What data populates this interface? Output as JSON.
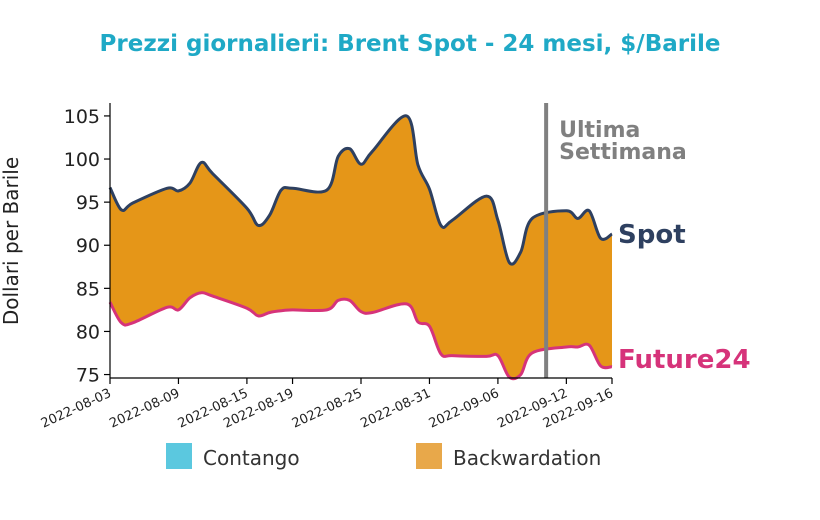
{
  "chart_data": {
    "type": "area",
    "title": "Prezzi giornalieri: Brent Spot - 24 mesi, $/Barile",
    "xlabel": "",
    "ylabel": "Dollari per Barile",
    "ylim": [
      74.6,
      106.5
    ],
    "yticks": [
      75,
      80,
      85,
      90,
      95,
      100,
      105
    ],
    "x": [
      "2022-08-03",
      "2022-08-04",
      "2022-08-05",
      "2022-08-08",
      "2022-08-09",
      "2022-08-10",
      "2022-08-11",
      "2022-08-12",
      "2022-08-15",
      "2022-08-16",
      "2022-08-17",
      "2022-08-18",
      "2022-08-19",
      "2022-08-22",
      "2022-08-23",
      "2022-08-24",
      "2022-08-25",
      "2022-08-26",
      "2022-08-29",
      "2022-08-30",
      "2022-08-31",
      "2022-09-01",
      "2022-09-02",
      "2022-09-05",
      "2022-09-06",
      "2022-09-07",
      "2022-09-08",
      "2022-09-09",
      "2022-09-12",
      "2022-09-13",
      "2022-09-14",
      "2022-09-15",
      "2022-09-16"
    ],
    "xtick_labels": [
      "2022-08-03",
      "2022-08-09",
      "2022-08-15",
      "2022-08-19",
      "2022-08-25",
      "2022-08-31",
      "2022-09-06",
      "2022-09-12",
      "2022-09-16"
    ],
    "series": [
      {
        "name": "Spot",
        "color": "#2e4060",
        "values": [
          96.7,
          94.1,
          94.9,
          96.6,
          96.3,
          97.2,
          99.6,
          98.3,
          94.3,
          92.3,
          93.5,
          96.4,
          96.6,
          96.4,
          100.3,
          101.2,
          99.4,
          100.9,
          105.0,
          99.3,
          96.5,
          92.3,
          92.9,
          95.7,
          92.9,
          88.0,
          89.2,
          93.1,
          94.0,
          93.1,
          94.0,
          90.8,
          91.3
        ]
      },
      {
        "name": "Future24",
        "color": "#d6337a",
        "values": [
          83.4,
          81.0,
          81.0,
          82.8,
          82.5,
          83.9,
          84.5,
          84.1,
          82.7,
          81.8,
          82.2,
          82.4,
          82.5,
          82.5,
          83.6,
          83.6,
          82.3,
          82.2,
          83.2,
          81.1,
          80.6,
          77.4,
          77.2,
          77.1,
          77.2,
          74.7,
          75.0,
          77.5,
          78.2,
          78.2,
          78.4,
          76.0,
          75.9
        ]
      }
    ],
    "fill_colors": {
      "contango": "#5bc8df",
      "backwardation": "#e59618"
    },
    "annotation": {
      "x": "2022-09-09",
      "lines": [
        "Ultima",
        "Settimana"
      ],
      "color": "#808080"
    },
    "legend": {
      "placement": "bottom",
      "entries": [
        {
          "label": "Contango",
          "color": "#5bc8df"
        },
        {
          "label": "Backwardation",
          "color": "#e8a84a"
        }
      ]
    },
    "title_color": "#1fa9c6",
    "grid": false
  }
}
